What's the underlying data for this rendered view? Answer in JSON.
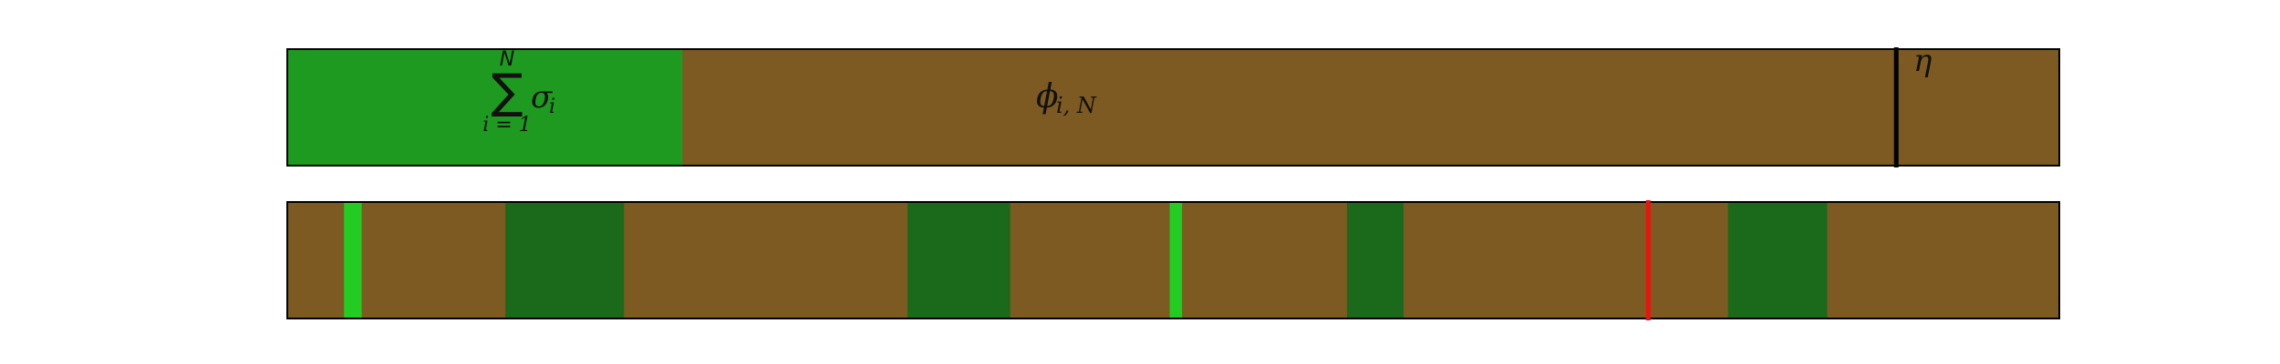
{
  "top_bar": {
    "green_label": {
      "symbol": "∑",
      "upper": "N",
      "lower": "i = 1",
      "summand": "σ",
      "summand_sub": "i"
    },
    "brown_label": {
      "symbol": "ϕ",
      "sub": "i, N"
    },
    "marker_label": "η",
    "green_fraction": 0.223,
    "marker_fraction": 0.908
  },
  "bottom_bar": {
    "segments": [
      {
        "kind": "thin-bright",
        "start": 0.032,
        "end": 0.042
      },
      {
        "kind": "dark",
        "start": 0.123,
        "end": 0.19
      },
      {
        "kind": "dark",
        "start": 0.35,
        "end": 0.408
      },
      {
        "kind": "thin-bright",
        "start": 0.498,
        "end": 0.505
      },
      {
        "kind": "dark",
        "start": 0.598,
        "end": 0.63
      },
      {
        "kind": "dark",
        "start": 0.813,
        "end": 0.869
      }
    ],
    "red_marker_fraction": 0.768
  },
  "colors": {
    "brown": "#7d5a22",
    "green": "#1d9a1f",
    "dark_green": "#1b6a1b",
    "bright_green": "#22cc22",
    "marker_black": "#000000",
    "marker_red": "#ee1111",
    "border": "#000000"
  }
}
